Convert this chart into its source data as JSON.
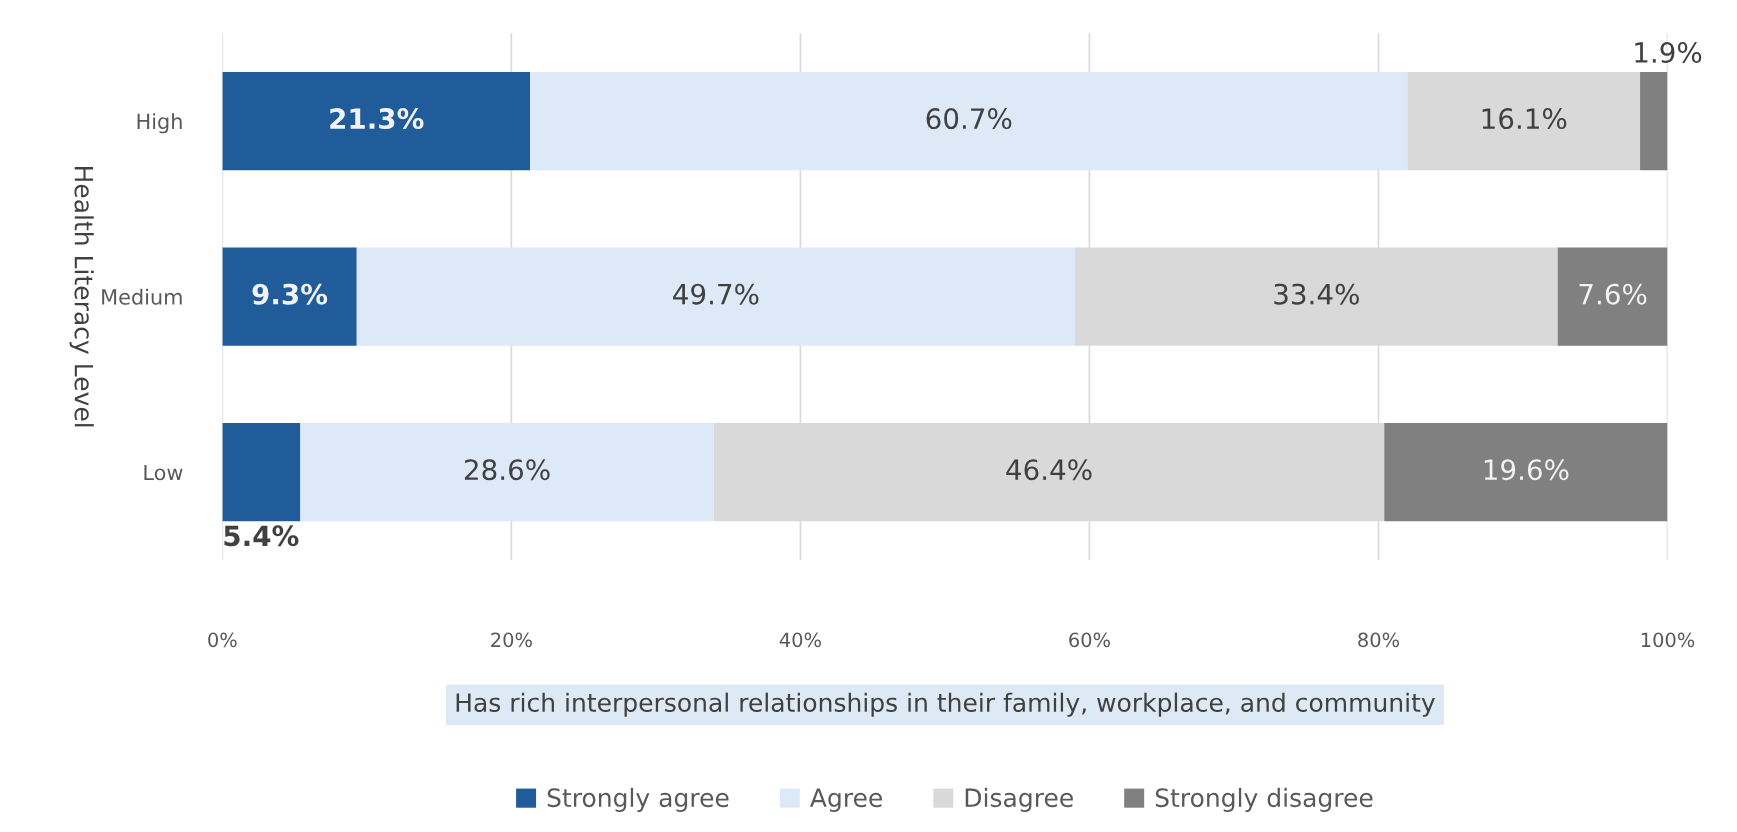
{
  "chart_data": {
    "type": "bar",
    "orientation": "horizontal",
    "stacked": true,
    "categories": [
      "High",
      "Medium",
      "Low"
    ],
    "series": [
      {
        "name": "Strongly agree",
        "color": "#1f5c99",
        "values": [
          21.3,
          9.3,
          5.4
        ],
        "value_labels": [
          "21.3%",
          "9.3%",
          "5.4%"
        ]
      },
      {
        "name": "Agree",
        "color": "#dde9f6",
        "values": [
          60.7,
          49.7,
          28.6
        ],
        "value_labels": [
          "60.7%",
          "49.7%",
          "28.6%"
        ]
      },
      {
        "name": "Disagree",
        "color": "#d9d9d9",
        "values": [
          16.1,
          33.4,
          46.4
        ],
        "value_labels": [
          "16.1%",
          "33.4%",
          "46.4%"
        ]
      },
      {
        "name": "Strongly disagree",
        "color": "#808080",
        "values": [
          1.9,
          7.6,
          19.6
        ],
        "value_labels": [
          "1.9%",
          "7.6%",
          "19.6%"
        ]
      }
    ],
    "xlim": [
      0,
      100
    ],
    "xticks": [
      {
        "value": 0,
        "label": "0%"
      },
      {
        "value": 20,
        "label": "20%"
      },
      {
        "value": 40,
        "label": "40%"
      },
      {
        "value": 60,
        "label": "60%"
      },
      {
        "value": 80,
        "label": "80%"
      },
      {
        "value": 100,
        "label": "100%"
      }
    ],
    "xlabel": "Has rich interpersonal relationships in their family, workplace, and community",
    "ylabel": "Health Literacy Level",
    "grid": "x",
    "legend": "bottom"
  }
}
